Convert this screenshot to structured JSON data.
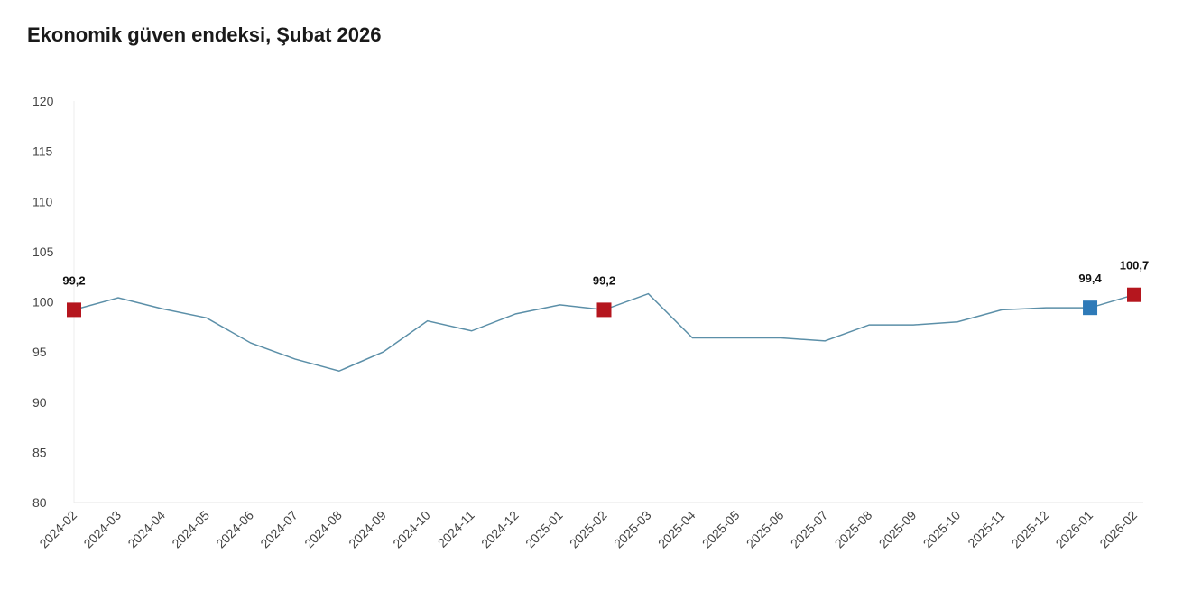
{
  "chart_data": {
    "type": "line",
    "title": "Ekonomik güven endeksi, Şubat 2026",
    "xlabel": "",
    "ylabel": "",
    "ylim": [
      80,
      120
    ],
    "yticks": [
      80,
      85,
      90,
      95,
      100,
      105,
      110,
      115,
      120
    ],
    "grid": false,
    "line_color": "#5b8fa8",
    "categories": [
      "2024-02",
      "2024-03",
      "2024-04",
      "2024-05",
      "2024-06",
      "2024-07",
      "2024-08",
      "2024-09",
      "2024-10",
      "2024-11",
      "2024-12",
      "2025-01",
      "2025-02",
      "2025-03",
      "2025-04",
      "2025-05",
      "2025-06",
      "2025-07",
      "2025-08",
      "2025-09",
      "2025-10",
      "2025-11",
      "2025-12",
      "2026-01",
      "2026-02"
    ],
    "values": [
      99.2,
      100.4,
      99.3,
      98.4,
      95.9,
      94.3,
      93.1,
      95.0,
      98.1,
      97.1,
      98.8,
      99.7,
      99.2,
      100.8,
      96.4,
      96.4,
      96.4,
      96.1,
      97.7,
      97.7,
      98.0,
      99.2,
      99.4,
      99.4,
      100.7
    ],
    "highlights": [
      {
        "category": "2024-02",
        "label": "99,2",
        "color": "#b5161e"
      },
      {
        "category": "2025-02",
        "label": "99,2",
        "color": "#b5161e"
      },
      {
        "category": "2026-01",
        "label": "99,4",
        "color": "#2e7ab8"
      },
      {
        "category": "2026-02",
        "label": "100,7",
        "color": "#b5161e"
      }
    ]
  }
}
